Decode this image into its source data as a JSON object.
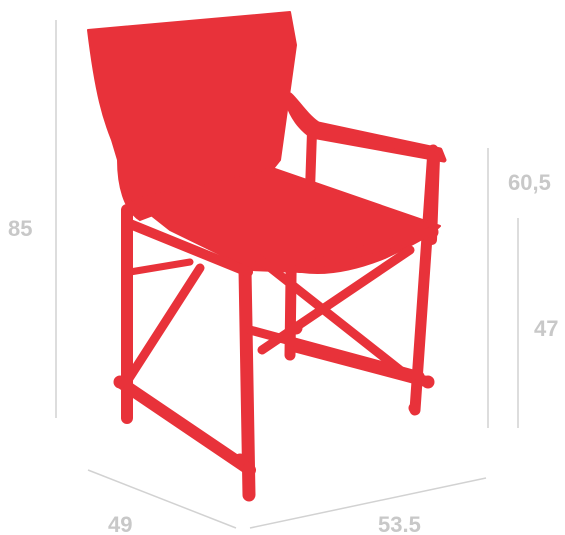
{
  "colors": {
    "chair": "#e8323a",
    "dimension_text": "#c8c8c8",
    "dimension_line": "#d2d2d2"
  },
  "dimensions": {
    "total_height": "85",
    "armrest_height": "60,5",
    "seat_height": "47",
    "depth": "49",
    "width": "53.5"
  }
}
